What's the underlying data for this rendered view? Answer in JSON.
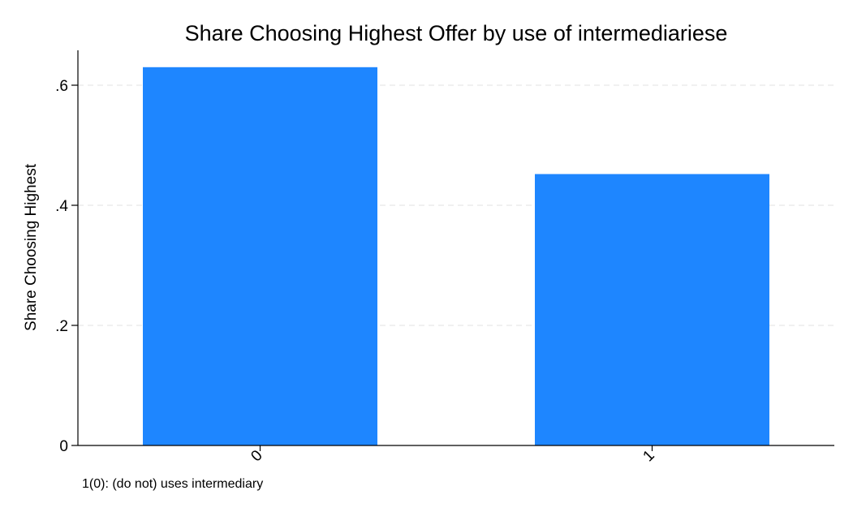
{
  "chart_data": {
    "type": "bar",
    "title": "Share Choosing Highest Offer by use of intermediariese",
    "ylabel": "Share Choosing Highest",
    "xlabel": "",
    "categories": [
      "0",
      "1"
    ],
    "values": [
      0.63,
      0.452
    ],
    "ylim": [
      0,
      0.66
    ],
    "yticks": [
      {
        "value": 0,
        "label": "0"
      },
      {
        "value": 0.2,
        "label": ".2"
      },
      {
        "value": 0.4,
        "label": ".4"
      },
      {
        "value": 0.6,
        "label": ".6"
      }
    ],
    "grid": "horizontal dashed",
    "bar_color": "#1e86ff",
    "note": "1(0): (do not) uses intermediary"
  }
}
